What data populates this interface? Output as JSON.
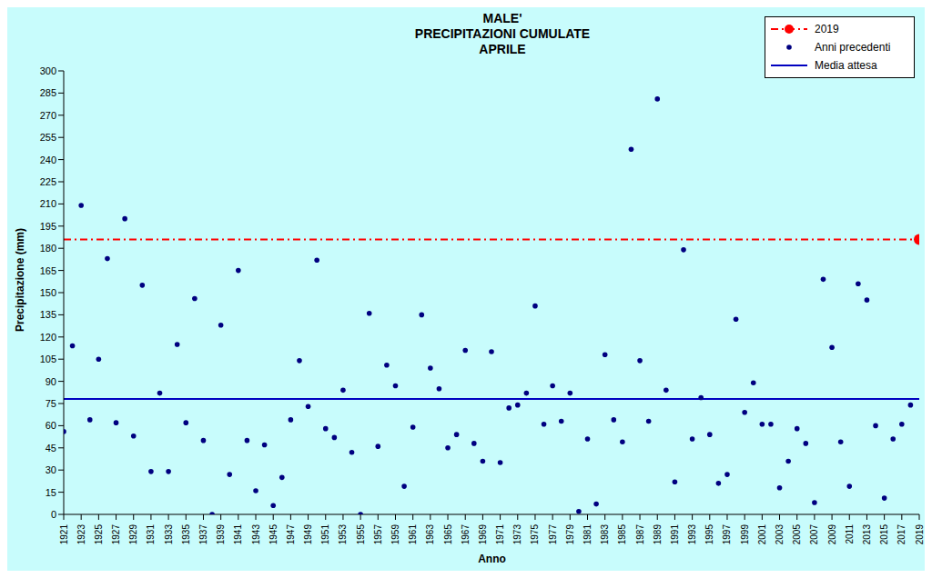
{
  "chart_data": {
    "type": "scatter",
    "title": "MALE'",
    "subtitle": [
      "PRECIPITAZIONI CUMULATE",
      "APRILE"
    ],
    "x_label": "Anno",
    "y_label": "Precipitazione (mm)",
    "xlim": [
      1921,
      2019
    ],
    "xticks": [
      1921,
      1923,
      1925,
      1927,
      1929,
      1931,
      1933,
      1935,
      1937,
      1939,
      1941,
      1943,
      1945,
      1947,
      1949,
      1951,
      1953,
      1955,
      1957,
      1959,
      1961,
      1963,
      1965,
      1967,
      1969,
      1971,
      1973,
      1975,
      1977,
      1979,
      1981,
      1983,
      1985,
      1987,
      1989,
      1991,
      1993,
      1995,
      1997,
      1999,
      2001,
      2003,
      2005,
      2007,
      2009,
      2011,
      2013,
      2015,
      2017,
      2019
    ],
    "ylim": [
      0,
      300
    ],
    "yticks": [
      0,
      15,
      30,
      45,
      60,
      75,
      90,
      105,
      120,
      135,
      150,
      165,
      180,
      195,
      210,
      225,
      240,
      255,
      270,
      285,
      300
    ],
    "grid": false,
    "legend": "upper right",
    "series": [
      {
        "name": "2019",
        "type": "scatter",
        "color": "#ff0000",
        "marker": "circle",
        "line_style": "dashdot",
        "x": [
          2019
        ],
        "values": [
          186
        ]
      },
      {
        "name": "Anni precedenti",
        "type": "scatter",
        "color": "#000080",
        "marker": "circle",
        "x": [
          1921,
          1922,
          1923,
          1924,
          1925,
          1926,
          1927,
          1928,
          1929,
          1930,
          1931,
          1932,
          1933,
          1934,
          1935,
          1936,
          1937,
          1938,
          1939,
          1940,
          1941,
          1942,
          1943,
          1944,
          1945,
          1946,
          1947,
          1948,
          1949,
          1950,
          1951,
          1952,
          1953,
          1954,
          1955,
          1956,
          1957,
          1958,
          1959,
          1960,
          1961,
          1962,
          1963,
          1964,
          1965,
          1966,
          1967,
          1968,
          1969,
          1970,
          1971,
          1972,
          1973,
          1974,
          1975,
          1976,
          1977,
          1978,
          1979,
          1980,
          1981,
          1982,
          1983,
          1984,
          1985,
          1986,
          1987,
          1988,
          1989,
          1990,
          1991,
          1992,
          1993,
          1994,
          1995,
          1996,
          1997,
          1998,
          1999,
          2000,
          2001,
          2002,
          2003,
          2004,
          2005,
          2006,
          2007,
          2008,
          2009,
          2010,
          2011,
          2012,
          2013,
          2014,
          2015,
          2016,
          2017,
          2018
        ],
        "values": [
          56,
          114,
          209,
          64,
          105,
          173,
          62,
          200,
          53,
          155,
          29,
          82,
          29,
          115,
          62,
          146,
          50,
          0,
          128,
          27,
          165,
          50,
          16,
          47,
          6,
          25,
          64,
          104,
          73,
          172,
          58,
          52,
          84,
          42,
          0,
          136,
          46,
          101,
          87,
          19,
          59,
          135,
          99,
          85,
          45,
          54,
          111,
          48,
          36,
          110,
          35,
          72,
          74,
          82,
          141,
          61,
          87,
          63,
          82,
          2,
          51,
          7,
          108,
          64,
          49,
          247,
          104,
          63,
          281,
          84,
          22,
          179,
          51,
          79,
          54,
          21,
          27,
          132,
          69,
          89,
          61,
          61,
          18,
          36,
          58,
          48,
          8,
          159,
          113,
          49,
          19,
          156,
          145,
          60,
          11,
          51,
          61,
          74
        ]
      },
      {
        "name": "Media attesa",
        "type": "hline",
        "color": "#0000c0",
        "line_style": "solid",
        "values": [
          78
        ]
      }
    ]
  }
}
